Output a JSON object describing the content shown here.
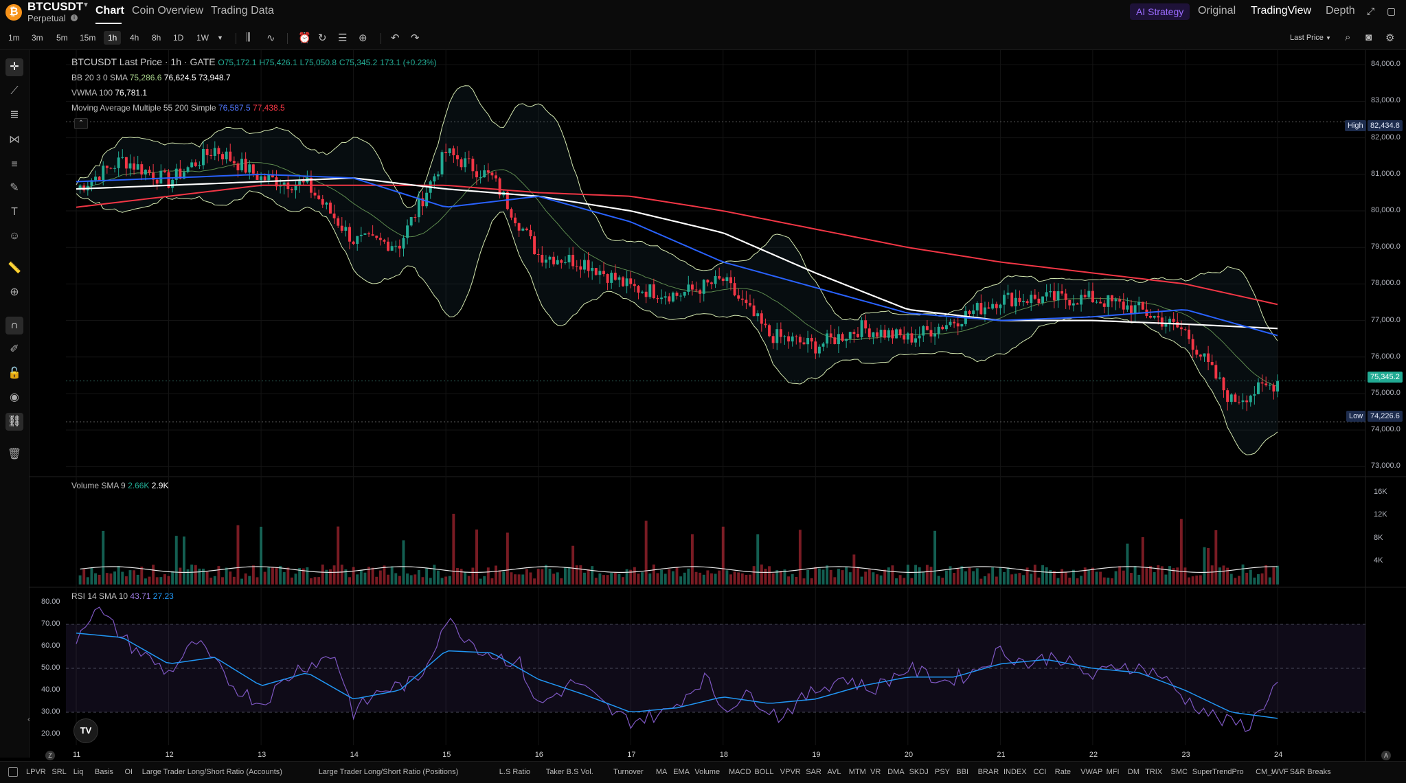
{
  "header": {
    "coin_glyph": "₿",
    "symbol": "BTCUSDT",
    "contract": "Perpetual",
    "tabs": [
      "Chart",
      "Coin Overview",
      "Trading Data"
    ],
    "active_tab": "Chart",
    "ai_strategy": "AI Strategy",
    "views": [
      "Original",
      "TradingView",
      "Depth"
    ],
    "active_view": "TradingView"
  },
  "toolbar": {
    "timeframes": [
      "1m",
      "3m",
      "5m",
      "15m",
      "1h",
      "4h",
      "8h",
      "1D",
      "1W"
    ],
    "active_timeframe": "1h",
    "price_source": "Last Price"
  },
  "legends": {
    "main": {
      "title": "BTCUSDT Last Price · 1h · GATE",
      "open": "O75,172.1",
      "high": "H75,426.1",
      "low": "L75,050.8",
      "close": "C75,345.2",
      "change": "173.1 (+0.23%)"
    },
    "bb": {
      "label": "BB 20 3 0 SMA",
      "v1": "75,286.6",
      "v2": "76,624.5",
      "v3": "73,948.7"
    },
    "vwma": {
      "label": "VWMA 100",
      "v1": "76,781.1"
    },
    "ma": {
      "label": "Moving Average Multiple 55 200 Simple",
      "v1": "76,587.5",
      "v2": "77,438.5"
    },
    "volume": {
      "label": "Volume SMA 9",
      "v1": "2.66K",
      "v2": "2.9K"
    },
    "rsi": {
      "label": "RSI 14 SMA 10",
      "v1": "43.71",
      "v2": "27.23"
    }
  },
  "price_axis": {
    "ticks": [
      "84,000.0",
      "83,000.0",
      "82,000.0",
      "81,000.0",
      "80,000.0",
      "79,000.0",
      "78,000.0",
      "77,000.0",
      "76,000.0",
      "75,000.0",
      "74,000.0",
      "73,000.0"
    ],
    "high_label": "High",
    "high_value": "82,434.8",
    "low_label": "Low",
    "low_value": "74,226.6",
    "last_value": "75,345.2"
  },
  "volume_axis": {
    "ticks": [
      "16K",
      "12K",
      "8K",
      "4K"
    ]
  },
  "rsi_axis": {
    "ticks": [
      "80.00",
      "70.00",
      "60.00",
      "50.00",
      "40.00",
      "30.00",
      "20.00"
    ]
  },
  "time_axis": {
    "ticks": [
      "11",
      "12",
      "13",
      "14",
      "15",
      "16",
      "17",
      "18",
      "19",
      "20",
      "21",
      "22",
      "23",
      "24"
    ]
  },
  "tv_logo": "TV",
  "indicators": [
    "LPVR",
    "SRL",
    "Liq",
    "Basis",
    "OI",
    "Large Trader Long/Short Ratio (Accounts)",
    "Large Trader Long/Short Ratio (Positions)",
    "L.S Ratio",
    "Taker B.S Vol.",
    "Turnover",
    "MA",
    "EMA",
    "Volume",
    "MACD",
    "BOLL",
    "VPVR",
    "SAR",
    "AVL",
    "MTM",
    "VR",
    "DMA",
    "SKDJ",
    "PSY",
    "BBI",
    "BRAR",
    "INDEX",
    "CCI",
    "Rate",
    "VWAP",
    "MFI",
    "DM",
    "TRIX",
    "SMC",
    "SuperTrendPro",
    "CM_WVF",
    "S&R Breaks"
  ],
  "colors": {
    "up": "#22ab94",
    "down": "#f23645",
    "ma55": "#2962ff",
    "ma200": "#f23645",
    "vwma": "#ffffff",
    "bb_band": "#d4e8b0",
    "rsi": "#7e57c2",
    "rsi_ma": "#2196f3"
  },
  "chart_data": {
    "type": "candlestick",
    "price_range": [
      72800,
      84400
    ],
    "time_start": "11",
    "candle_hint_key": [
      [
        11.0,
        80600
      ],
      [
        11.5,
        81400
      ],
      [
        12.0,
        80800
      ],
      [
        12.5,
        81700
      ],
      [
        13.0,
        80900
      ],
      [
        13.5,
        80700
      ],
      [
        14.0,
        79200
      ],
      [
        14.5,
        79100
      ],
      [
        15.0,
        81600
      ],
      [
        15.5,
        80900
      ],
      [
        16.0,
        78800
      ],
      [
        16.5,
        78600
      ],
      [
        17.0,
        77900
      ],
      [
        17.5,
        77700
      ],
      [
        18.0,
        78100
      ],
      [
        18.5,
        76600
      ],
      [
        19.0,
        76300
      ],
      [
        19.5,
        76800
      ],
      [
        20.0,
        76500
      ],
      [
        20.5,
        77000
      ],
      [
        21.0,
        77600
      ],
      [
        21.5,
        77600
      ],
      [
        22.0,
        77600
      ],
      [
        22.5,
        77300
      ],
      [
        23.0,
        76700
      ],
      [
        23.5,
        74800
      ],
      [
        24.0,
        75300
      ]
    ],
    "ma55": [
      [
        11.0,
        80800
      ],
      [
        12.0,
        80900
      ],
      [
        13.0,
        81000
      ],
      [
        14.0,
        80900
      ],
      [
        15.0,
        80100
      ],
      [
        16.0,
        80400
      ],
      [
        17.0,
        79700
      ],
      [
        18.0,
        78600
      ],
      [
        19.0,
        77900
      ],
      [
        20.0,
        77200
      ],
      [
        21.0,
        77000
      ],
      [
        22.0,
        77100
      ],
      [
        23.0,
        77300
      ],
      [
        24.0,
        76587.5
      ]
    ],
    "ma200": [
      [
        11.0,
        80100
      ],
      [
        13.0,
        80700
      ],
      [
        15.0,
        80700
      ],
      [
        16.0,
        80500
      ],
      [
        17.0,
        80400
      ],
      [
        18.0,
        80000
      ],
      [
        19.0,
        79500
      ],
      [
        20.0,
        79000
      ],
      [
        21.0,
        78600
      ],
      [
        22.0,
        78300
      ],
      [
        23.0,
        78000
      ],
      [
        24.0,
        77438.5
      ]
    ],
    "vwma": [
      [
        11.0,
        80600
      ],
      [
        12.0,
        80700
      ],
      [
        13.0,
        80800
      ],
      [
        14.0,
        80900
      ],
      [
        15.0,
        80600
      ],
      [
        16.0,
        80400
      ],
      [
        17.0,
        80000
      ],
      [
        18.0,
        79400
      ],
      [
        19.0,
        78300
      ],
      [
        20.0,
        77300
      ],
      [
        21.0,
        77000
      ],
      [
        22.0,
        77000
      ],
      [
        23.0,
        76900
      ],
      [
        24.0,
        76781.1
      ]
    ],
    "volume_ticks_k": [
      16,
      12,
      8,
      4
    ],
    "rsi": [
      [
        11.0,
        64
      ],
      [
        11.2,
        78
      ],
      [
        11.6,
        60
      ],
      [
        12.0,
        48
      ],
      [
        12.3,
        62
      ],
      [
        12.7,
        42
      ],
      [
        13.0,
        34
      ],
      [
        13.4,
        50
      ],
      [
        13.8,
        56
      ],
      [
        14.0,
        30
      ],
      [
        14.3,
        40
      ],
      [
        14.7,
        44
      ],
      [
        15.0,
        72
      ],
      [
        15.4,
        58
      ],
      [
        15.8,
        52
      ],
      [
        16.0,
        33
      ],
      [
        16.4,
        44
      ],
      [
        16.8,
        30
      ],
      [
        17.0,
        26
      ],
      [
        17.4,
        30
      ],
      [
        17.8,
        46
      ],
      [
        18.0,
        32
      ],
      [
        18.3,
        38
      ],
      [
        18.6,
        28
      ],
      [
        19.0,
        40
      ],
      [
        19.3,
        46
      ],
      [
        19.6,
        40
      ],
      [
        20.0,
        50
      ],
      [
        20.4,
        44
      ],
      [
        20.7,
        48
      ],
      [
        21.0,
        58
      ],
      [
        21.3,
        52
      ],
      [
        21.6,
        56
      ],
      [
        22.0,
        46
      ],
      [
        22.3,
        52
      ],
      [
        22.7,
        48
      ],
      [
        23.0,
        36
      ],
      [
        23.4,
        26
      ],
      [
        23.7,
        24
      ],
      [
        24.0,
        43.71
      ]
    ],
    "rsi_ma": [
      [
        11.0,
        66
      ],
      [
        11.5,
        64
      ],
      [
        12.0,
        52
      ],
      [
        12.5,
        55
      ],
      [
        13.0,
        42
      ],
      [
        13.5,
        48
      ],
      [
        14.0,
        36
      ],
      [
        14.5,
        40
      ],
      [
        15.0,
        58
      ],
      [
        15.5,
        57
      ],
      [
        16.0,
        45
      ],
      [
        16.5,
        38
      ],
      [
        17.0,
        30
      ],
      [
        17.5,
        32
      ],
      [
        18.0,
        37
      ],
      [
        18.5,
        34
      ],
      [
        19.0,
        36
      ],
      [
        19.5,
        42
      ],
      [
        20.0,
        46
      ],
      [
        20.5,
        46
      ],
      [
        21.0,
        52
      ],
      [
        21.5,
        54
      ],
      [
        22.0,
        50
      ],
      [
        22.5,
        48
      ],
      [
        23.0,
        40
      ],
      [
        23.5,
        30
      ],
      [
        24.0,
        27.23
      ]
    ]
  }
}
